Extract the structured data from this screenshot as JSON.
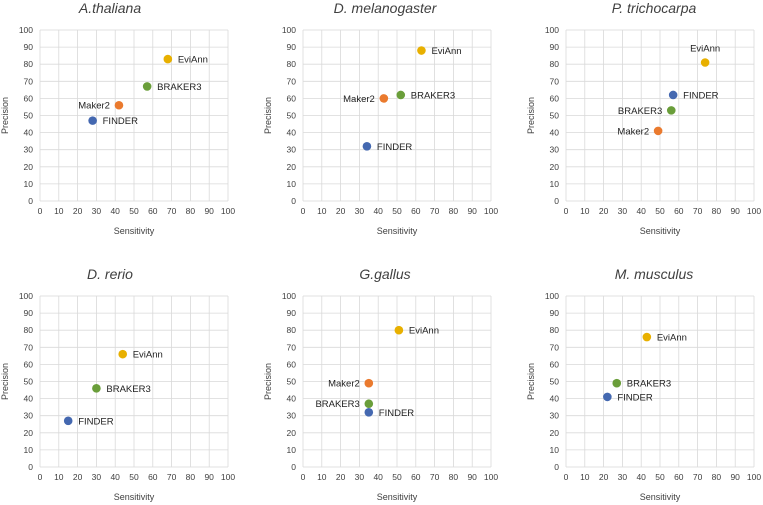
{
  "colors": {
    "EviAnn": "#e8b000",
    "BRAKER3": "#6a9e3a",
    "Maker2": "#ea7a2e",
    "FINDER": "#4468b0",
    "grid": "#d9d9d9",
    "text": "#404040"
  },
  "chart_data": [
    {
      "type": "scatter",
      "title": "A.thaliana",
      "xlabel": "Sensitivity",
      "ylabel": "Precision",
      "xlim": [
        0,
        100
      ],
      "ylim": [
        0,
        100
      ],
      "xticks": [
        "0",
        "10",
        "20",
        "30",
        "40",
        "50",
        "60",
        "70",
        "80",
        "90",
        "100"
      ],
      "yticks": [
        "0",
        "10",
        "20",
        "30",
        "40",
        "50",
        "60",
        "70",
        "80",
        "90",
        "100"
      ],
      "grid": true,
      "points": [
        {
          "name": "EviAnn",
          "x": 68,
          "y": 83,
          "label_side": "right"
        },
        {
          "name": "BRAKER3",
          "x": 57,
          "y": 67,
          "label_side": "right"
        },
        {
          "name": "Maker2",
          "x": 42,
          "y": 56,
          "label_side": "left"
        },
        {
          "name": "FINDER",
          "x": 28,
          "y": 47,
          "label_side": "right"
        }
      ]
    },
    {
      "type": "scatter",
      "title": "D. melanogaster",
      "xlabel": "Sensitivity",
      "ylabel": "Precision",
      "xlim": [
        0,
        100
      ],
      "ylim": [
        0,
        100
      ],
      "xticks": [
        "0",
        "10",
        "20",
        "30",
        "40",
        "50",
        "60",
        "70",
        "80",
        "90",
        "100"
      ],
      "yticks": [
        "0",
        "10",
        "20",
        "30",
        "40",
        "50",
        "60",
        "70",
        "80",
        "90",
        "100"
      ],
      "grid": true,
      "points": [
        {
          "name": "EviAnn",
          "x": 63,
          "y": 88,
          "label_side": "right"
        },
        {
          "name": "BRAKER3",
          "x": 52,
          "y": 62,
          "label_side": "right"
        },
        {
          "name": "Maker2",
          "x": 43,
          "y": 60,
          "label_side": "left"
        },
        {
          "name": "FINDER",
          "x": 34,
          "y": 32,
          "label_side": "right"
        }
      ]
    },
    {
      "type": "scatter",
      "title": "P. trichocarpa",
      "xlabel": "Sensitivity",
      "ylabel": "Precision",
      "xlim": [
        0,
        100
      ],
      "ylim": [
        0,
        100
      ],
      "xticks": [
        "0",
        "10",
        "20",
        "30",
        "40",
        "50",
        "60",
        "70",
        "80",
        "90",
        "100"
      ],
      "yticks": [
        "0",
        "10",
        "20",
        "30",
        "40",
        "50",
        "60",
        "70",
        "80",
        "90",
        "100"
      ],
      "grid": true,
      "points": [
        {
          "name": "EviAnn",
          "x": 74,
          "y": 81,
          "label_side": "above"
        },
        {
          "name": "FINDER",
          "x": 57,
          "y": 62,
          "label_side": "right"
        },
        {
          "name": "BRAKER3",
          "x": 56,
          "y": 53,
          "label_side": "left"
        },
        {
          "name": "Maker2",
          "x": 49,
          "y": 41,
          "label_side": "left"
        }
      ]
    },
    {
      "type": "scatter",
      "title": "D. rerio",
      "xlabel": "Sensitivity",
      "ylabel": "Precision",
      "xlim": [
        0,
        100
      ],
      "ylim": [
        0,
        100
      ],
      "xticks": [
        "0",
        "10",
        "20",
        "30",
        "40",
        "50",
        "60",
        "70",
        "80",
        "90",
        "100"
      ],
      "yticks": [
        "0",
        "10",
        "20",
        "30",
        "40",
        "50",
        "60",
        "70",
        "80",
        "90",
        "100"
      ],
      "grid": true,
      "points": [
        {
          "name": "EviAnn",
          "x": 44,
          "y": 66,
          "label_side": "right"
        },
        {
          "name": "BRAKER3",
          "x": 30,
          "y": 46,
          "label_side": "right"
        },
        {
          "name": "FINDER",
          "x": 15,
          "y": 27,
          "label_side": "right"
        }
      ]
    },
    {
      "type": "scatter",
      "title": "G.gallus",
      "xlabel": "Sensitivity",
      "ylabel": "Precision",
      "xlim": [
        0,
        100
      ],
      "ylim": [
        0,
        100
      ],
      "xticks": [
        "0",
        "10",
        "20",
        "30",
        "40",
        "50",
        "60",
        "70",
        "80",
        "90",
        "100"
      ],
      "yticks": [
        "0",
        "10",
        "20",
        "30",
        "40",
        "50",
        "60",
        "70",
        "80",
        "90",
        "100"
      ],
      "grid": true,
      "points": [
        {
          "name": "EviAnn",
          "x": 51,
          "y": 80,
          "label_side": "right"
        },
        {
          "name": "Maker2",
          "x": 35,
          "y": 49,
          "label_side": "left"
        },
        {
          "name": "BRAKER3",
          "x": 35,
          "y": 37,
          "label_side": "left"
        },
        {
          "name": "FINDER",
          "x": 35,
          "y": 32,
          "label_side": "right"
        }
      ]
    },
    {
      "type": "scatter",
      "title": "M. musculus",
      "xlabel": "Sensitivity",
      "ylabel": "Precision",
      "xlim": [
        0,
        100
      ],
      "ylim": [
        0,
        100
      ],
      "xticks": [
        "0",
        "10",
        "20",
        "30",
        "40",
        "50",
        "60",
        "70",
        "80",
        "90",
        "100"
      ],
      "yticks": [
        "0",
        "10",
        "20",
        "30",
        "40",
        "50",
        "60",
        "70",
        "80",
        "90",
        "100"
      ],
      "grid": true,
      "points": [
        {
          "name": "EviAnn",
          "x": 43,
          "y": 76,
          "label_side": "right"
        },
        {
          "name": "BRAKER3",
          "x": 27,
          "y": 49,
          "label_side": "right"
        },
        {
          "name": "FINDER",
          "x": 22,
          "y": 41,
          "label_side": "right"
        }
      ]
    }
  ]
}
